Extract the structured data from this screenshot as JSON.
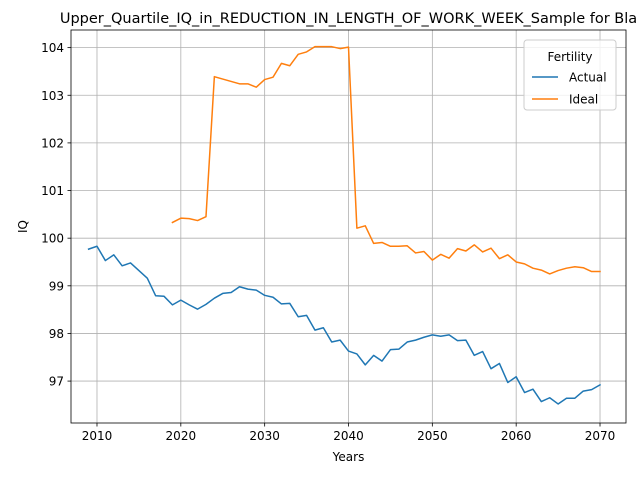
{
  "chart_data": {
    "type": "line",
    "title": "Upper_Quartile_IQ_in_REDUCTION_IN_LENGTH_OF_WORK_WEEK_Sample for Bla",
    "xlabel": "Years",
    "ylabel": "IQ",
    "xlim": [
      2006.9,
      2073.1
    ],
    "ylim": [
      96.12,
      104.37
    ],
    "xticks": [
      2010,
      2020,
      2030,
      2040,
      2050,
      2060,
      2070
    ],
    "yticks": [
      97,
      98,
      99,
      100,
      101,
      102,
      103,
      104
    ],
    "grid": true,
    "legend": {
      "title": "Fertility",
      "placement": "upper right"
    },
    "series": [
      {
        "name": "Actual",
        "color": "#1f77b4",
        "x": [
          2009,
          2010,
          2011,
          2012,
          2013,
          2014,
          2015,
          2016,
          2017,
          2018,
          2019,
          2020,
          2021,
          2022,
          2023,
          2024,
          2025,
          2026,
          2027,
          2028,
          2029,
          2030,
          2031,
          2032,
          2033,
          2034,
          2035,
          2036,
          2037,
          2038,
          2039,
          2040,
          2041,
          2042,
          2043,
          2044,
          2045,
          2046,
          2047,
          2048,
          2049,
          2050,
          2051,
          2052,
          2053,
          2054,
          2055,
          2056,
          2057,
          2058,
          2059,
          2060,
          2061,
          2062,
          2063,
          2064,
          2065,
          2066,
          2067,
          2068,
          2069,
          2070
        ],
        "y": [
          99.77,
          99.83,
          99.53,
          99.65,
          99.42,
          99.48,
          99.32,
          99.16,
          98.79,
          98.78,
          98.6,
          98.7,
          98.6,
          98.51,
          98.61,
          98.74,
          98.84,
          98.86,
          98.98,
          98.93,
          98.91,
          98.8,
          98.76,
          98.62,
          98.63,
          98.35,
          98.38,
          98.07,
          98.12,
          97.82,
          97.86,
          97.63,
          97.57,
          97.34,
          97.54,
          97.42,
          97.66,
          97.67,
          97.82,
          97.86,
          97.92,
          97.97,
          97.94,
          97.97,
          97.85,
          97.86,
          97.54,
          97.62,
          97.26,
          97.37,
          96.97,
          97.09,
          96.76,
          96.83,
          96.57,
          96.65,
          96.52,
          96.64,
          96.64,
          96.79,
          96.82,
          96.92
        ]
      },
      {
        "name": "Ideal",
        "color": "#ff7f0e",
        "x": [
          2019,
          2020,
          2021,
          2022,
          2023,
          2024,
          2025,
          2026,
          2027,
          2028,
          2029,
          2030,
          2031,
          2032,
          2033,
          2034,
          2035,
          2036,
          2037,
          2038,
          2039,
          2040,
          2041,
          2042,
          2043,
          2044,
          2045,
          2046,
          2047,
          2048,
          2049,
          2050,
          2051,
          2052,
          2053,
          2054,
          2055,
          2056,
          2057,
          2058,
          2059,
          2060,
          2061,
          2062,
          2063,
          2064,
          2065,
          2066,
          2067,
          2068,
          2069,
          2070
        ],
        "y": [
          100.33,
          100.42,
          100.41,
          100.37,
          100.45,
          103.39,
          103.34,
          103.29,
          103.24,
          103.24,
          103.17,
          103.33,
          103.38,
          103.67,
          103.62,
          103.86,
          103.91,
          104.02,
          104.02,
          104.02,
          103.98,
          104.01,
          100.21,
          100.26,
          99.89,
          99.91,
          99.83,
          99.83,
          99.84,
          99.69,
          99.72,
          99.54,
          99.66,
          99.58,
          99.78,
          99.73,
          99.86,
          99.71,
          99.79,
          99.57,
          99.65,
          99.5,
          99.46,
          99.37,
          99.33,
          99.25,
          99.32,
          99.37,
          99.4,
          99.38,
          99.3,
          99.3
        ]
      }
    ]
  }
}
